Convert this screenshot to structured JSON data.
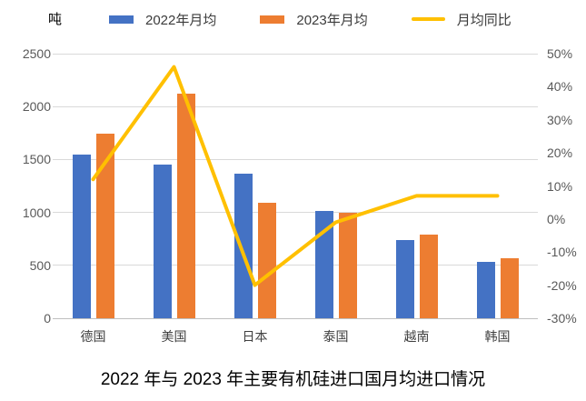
{
  "title": "2022 年与 2023 年主要有机硅进口国月均进口情况",
  "unit_label": "吨",
  "colors": {
    "bar_2022": "#4472C4",
    "bar_2023": "#ED7D31",
    "line": "#FFC000",
    "gridline": "#D9D9D9",
    "axis_line": "#BFBFBF",
    "tick_label": "#595959",
    "category_label": "#404040",
    "title_color": "#000000",
    "background": "#FFFFFF"
  },
  "legend": {
    "position": "top",
    "items": [
      {
        "label": "2022年月均",
        "type": "bar",
        "color": "#4472C4"
      },
      {
        "label": "2023年月均",
        "type": "bar",
        "color": "#ED7D31"
      },
      {
        "label": "月均同比",
        "type": "line",
        "color": "#FFC000"
      }
    ]
  },
  "chart_data": {
    "type": "bar",
    "subtype": "grouped-bars-with-line",
    "title": "2022 年与 2023 年主要有机硅进口国月均进口情况",
    "categories": [
      "德国",
      "美国",
      "日本",
      "泰国",
      "越南",
      "韩国"
    ],
    "series": [
      {
        "name": "2022年月均",
        "type": "bar",
        "axis": "left",
        "color": "#4472C4",
        "values": [
          1550,
          1450,
          1370,
          1010,
          740,
          535
        ]
      },
      {
        "name": "2023年月均",
        "type": "bar",
        "axis": "left",
        "color": "#ED7D31",
        "values": [
          1740,
          2120,
          1090,
          1000,
          790,
          570
        ]
      },
      {
        "name": "月均同比",
        "type": "line",
        "axis": "right",
        "color": "#FFC000",
        "values_percent": [
          12,
          46,
          -20,
          -1,
          7,
          7
        ]
      }
    ],
    "left_axis": {
      "label": "吨",
      "min": 0,
      "max": 2500,
      "step": 500,
      "ticks": [
        "0",
        "500",
        "1000",
        "1500",
        "2000",
        "2500"
      ]
    },
    "right_axis": {
      "min": -30,
      "max": 50,
      "step": 10,
      "ticks": [
        "-30%",
        "-20%",
        "-10%",
        "0%",
        "10%",
        "20%",
        "30%",
        "40%",
        "50%"
      ]
    },
    "grid": true,
    "legend_position": "top",
    "xlabel": "",
    "ylabel": "吨"
  }
}
